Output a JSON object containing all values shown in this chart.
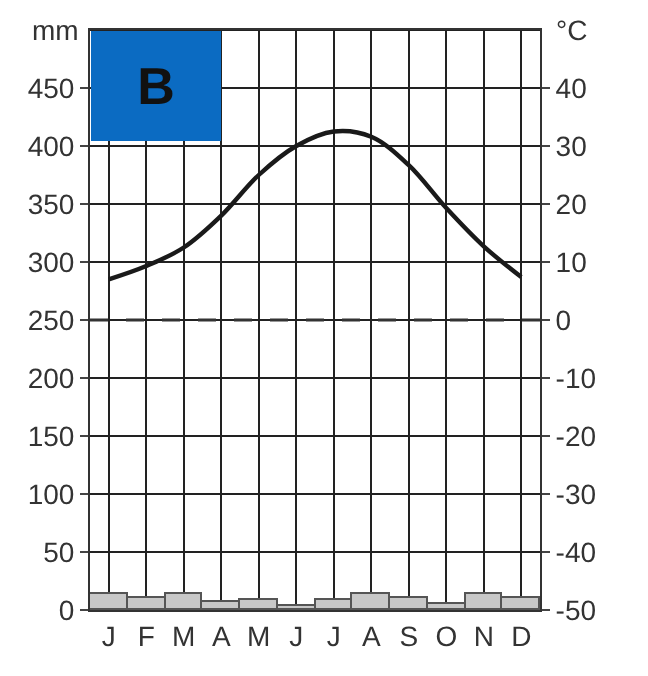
{
  "chart_data": {
    "type": "bar",
    "categories": [
      "J",
      "F",
      "M",
      "A",
      "M",
      "J",
      "J",
      "A",
      "S",
      "O",
      "N",
      "D"
    ],
    "ylabel": "mm",
    "y2label": "°C",
    "series": [
      {
        "color": "#c8c8c8",
        "values": [
          14,
          11,
          14,
          7,
          8,
          4,
          9,
          13,
          10,
          6,
          14,
          11
        ]
      },
      {
        "type": "line",
        "axis": "y2",
        "color": "#1a1a1a",
        "values": [
          7,
          9.3,
          12.5,
          18,
          25,
          30,
          32.5,
          31.6,
          26.7,
          19.3,
          12.7,
          7.4
        ]
      }
    ],
    "ylim": [
      0,
      500
    ],
    "yticks": [
      0,
      50,
      100,
      150,
      200,
      250,
      300,
      350,
      400,
      450
    ],
    "y2lim": [
      -50,
      50
    ],
    "y2ticks": [
      -50,
      -40,
      -30,
      -20,
      -10,
      0,
      10,
      20,
      30,
      40
    ],
    "ref_lines": [
      {
        "axis": "y2",
        "value": 0,
        "line_style": "dashed",
        "color": "#333333"
      }
    ],
    "annotations": [
      "B"
    ],
    "grid": true,
    "marker": "none",
    "line_style": "solid"
  }
}
